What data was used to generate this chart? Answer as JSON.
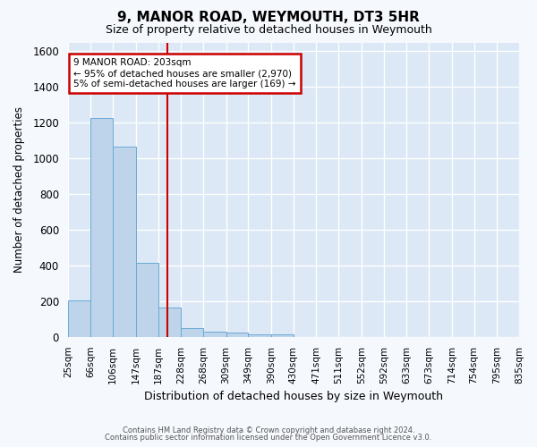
{
  "title": "9, MANOR ROAD, WEYMOUTH, DT3 5HR",
  "subtitle": "Size of property relative to detached houses in Weymouth",
  "xlabel": "Distribution of detached houses by size in Weymouth",
  "ylabel": "Number of detached properties",
  "bar_left_edges": [
    25,
    66,
    106,
    147,
    187,
    228,
    268,
    309,
    349,
    390,
    430,
    471,
    511,
    552,
    592,
    633,
    673,
    714,
    754,
    795
  ],
  "bar_widths": [
    41,
    40,
    41,
    40,
    41,
    40,
    41,
    40,
    41,
    40,
    41,
    40,
    41,
    40,
    41,
    40,
    41,
    40,
    41,
    40
  ],
  "bar_heights": [
    205,
    1225,
    1065,
    415,
    165,
    50,
    30,
    23,
    15,
    14,
    0,
    0,
    0,
    0,
    0,
    0,
    0,
    0,
    0,
    0
  ],
  "bar_color": "#bdd4eb",
  "bar_edge_color": "#6aaad4",
  "x_tick_labels": [
    "25sqm",
    "66sqm",
    "106sqm",
    "147sqm",
    "187sqm",
    "228sqm",
    "268sqm",
    "309sqm",
    "349sqm",
    "390sqm",
    "430sqm",
    "471sqm",
    "511sqm",
    "552sqm",
    "592sqm",
    "633sqm",
    "673sqm",
    "714sqm",
    "754sqm",
    "795sqm",
    "835sqm"
  ],
  "x_tick_positions": [
    25,
    66,
    106,
    147,
    187,
    228,
    268,
    309,
    349,
    390,
    430,
    471,
    511,
    552,
    592,
    633,
    673,
    714,
    754,
    795,
    835
  ],
  "ylim": [
    0,
    1650
  ],
  "xlim": [
    25,
    835
  ],
  "y_ticks": [
    0,
    200,
    400,
    600,
    800,
    1000,
    1200,
    1400,
    1600
  ],
  "vline_x": 203,
  "vline_color": "#cc0000",
  "annotation_lines": [
    "9 MANOR ROAD: 203sqm",
    "← 95% of detached houses are smaller (2,970)",
    "5% of semi-detached houses are larger (169) →"
  ],
  "background_color": "#dce8f5",
  "grid_color": "#ffffff",
  "fig_background": "#f5f8fd",
  "footer_line1": "Contains HM Land Registry data © Crown copyright and database right 2024.",
  "footer_line2": "Contains public sector information licensed under the Open Government Licence v3.0."
}
